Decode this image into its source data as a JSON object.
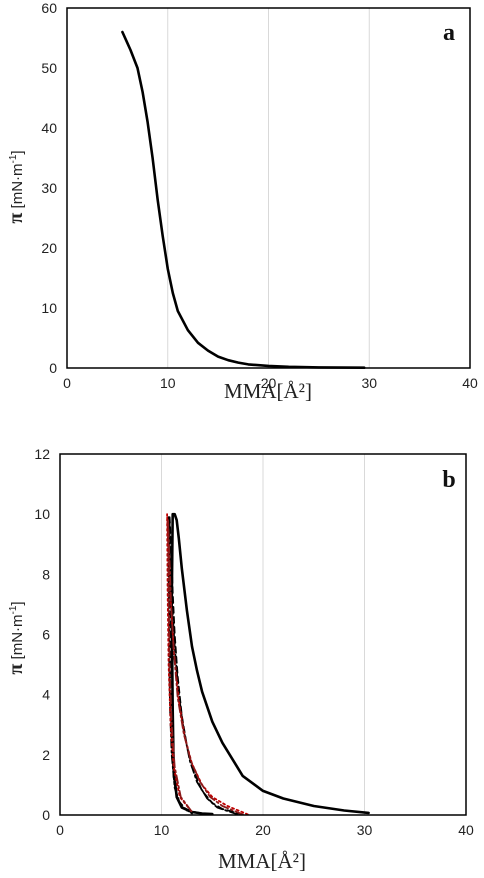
{
  "chart_data": [
    {
      "type": "line",
      "panel_label": "a",
      "xlabel": "MMA[Å²]",
      "ylabel_symbol": "π",
      "ylabel_unit": " [mN·m",
      "ylabel_sup": "-1",
      "ylabel_close": "]",
      "xlim": [
        0,
        40
      ],
      "ylim": [
        0,
        60
      ],
      "xticks": [
        0,
        10,
        20,
        30,
        40
      ],
      "yticks": [
        0,
        10,
        20,
        30,
        40,
        50,
        60
      ],
      "grid": "vertical",
      "series": [
        {
          "style": "solid",
          "color": "#000000",
          "x": [
            5.5,
            6.3,
            7.0,
            7.5,
            8.0,
            8.5,
            9.0,
            9.5,
            10.0,
            10.5,
            11.0,
            12.0,
            13.0,
            14.0,
            15.0,
            16.0,
            17.0,
            18.0,
            20.0,
            22.0,
            25.0,
            29.5
          ],
          "y": [
            56,
            53,
            50,
            46,
            41,
            35,
            28,
            22,
            16.5,
            12.5,
            9.5,
            6.3,
            4.2,
            2.9,
            1.9,
            1.3,
            0.9,
            0.6,
            0.35,
            0.2,
            0.1,
            0.05
          ]
        }
      ]
    },
    {
      "type": "line",
      "panel_label": "b",
      "xlabel": "MMA[Å²]",
      "ylabel_symbol": "π",
      "ylabel_unit": " [mN·m",
      "ylabel_sup": "-1",
      "ylabel_close": "]",
      "xlim": [
        0,
        40
      ],
      "ylim": [
        0,
        12
      ],
      "xticks": [
        0,
        10,
        20,
        30,
        40
      ],
      "yticks": [
        0,
        2,
        4,
        6,
        8,
        10,
        12
      ],
      "grid": "vertical",
      "series": [
        {
          "style": "solid",
          "color": "#000000",
          "x": [
            30.4,
            28.0,
            25.0,
            22.0,
            20.0,
            18.0,
            16.0,
            15.0,
            14.0,
            13.5,
            13.0,
            12.5,
            12.0,
            11.7,
            11.5,
            11.3,
            11.1,
            11.0,
            11.1,
            11.2,
            11.5,
            12.0,
            13.0,
            14.0,
            15.0
          ],
          "y": [
            0.07,
            0.15,
            0.3,
            0.55,
            0.8,
            1.3,
            2.4,
            3.1,
            4.1,
            4.8,
            5.6,
            6.8,
            8.2,
            9.2,
            9.8,
            10.0,
            10.0,
            7.0,
            3.5,
            1.5,
            0.6,
            0.25,
            0.1,
            0.05,
            0.03
          ]
        },
        {
          "style": "dashed",
          "color": "#000000",
          "x": [
            18.0,
            16.0,
            15.0,
            14.0,
            13.0,
            12.5,
            12.0,
            11.6,
            11.3,
            11.1,
            11.0,
            10.9,
            10.8,
            10.8,
            10.85,
            10.9,
            11.0,
            11.2,
            11.6,
            12.5,
            14.0
          ],
          "y": [
            0.02,
            0.2,
            0.4,
            0.8,
            1.6,
            2.3,
            3.3,
            4.6,
            6.0,
            7.4,
            8.4,
            9.3,
            9.9,
            8.0,
            6.0,
            4.0,
            2.5,
            1.2,
            0.5,
            0.15,
            0.05
          ]
        },
        {
          "style": "dashdot",
          "color": "#000000",
          "x": [
            17.5,
            15.5,
            14.5,
            13.5,
            12.8,
            12.2,
            11.7,
            11.3,
            11.0,
            10.85,
            10.75,
            10.7,
            10.7,
            10.75,
            10.85,
            11.0,
            11.3,
            11.9,
            13.0
          ],
          "y": [
            0.02,
            0.25,
            0.55,
            1.1,
            1.8,
            2.8,
            4.0,
            5.6,
            7.2,
            8.5,
            9.5,
            9.9,
            8.0,
            5.5,
            3.5,
            2.0,
            0.9,
            0.3,
            0.05
          ]
        },
        {
          "style": "dotted",
          "color": "#c00000",
          "x": [
            18.5,
            16.5,
            15.0,
            14.0,
            13.0,
            12.3,
            11.7,
            11.2,
            10.9,
            10.7,
            10.6,
            10.55,
            10.6,
            10.7,
            10.9,
            11.2,
            11.8,
            13.0
          ],
          "y": [
            0.02,
            0.3,
            0.6,
            1.0,
            1.7,
            2.6,
            3.8,
            5.5,
            7.2,
            8.6,
            9.5,
            10.0,
            7.5,
            5.0,
            3.0,
            1.6,
            0.6,
            0.1
          ]
        },
        {
          "style": "dashdot",
          "color": "#8b1a1a",
          "x": [
            18.0,
            16.0,
            14.8,
            13.8,
            12.9,
            12.2,
            11.6,
            11.2,
            10.95,
            10.8,
            10.7,
            10.65,
            10.7,
            10.8,
            11.0,
            11.3,
            11.9,
            13.0
          ],
          "y": [
            0.02,
            0.3,
            0.6,
            1.1,
            1.8,
            2.7,
            3.9,
            5.5,
            7.0,
            8.4,
            9.3,
            9.8,
            7.5,
            5.0,
            3.0,
            1.6,
            0.6,
            0.1
          ]
        }
      ]
    }
  ]
}
